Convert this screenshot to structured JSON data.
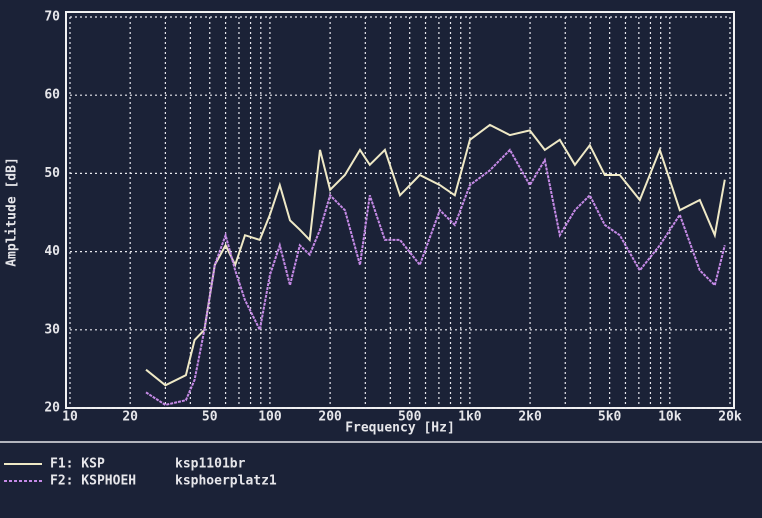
{
  "chart_data": {
    "type": "line",
    "xlabel": "Frequency [Hz]",
    "ylabel": "Amplitude [dB]",
    "log_x": true,
    "grid": true,
    "legend": "bottom-left",
    "x": [
      24,
      30,
      38,
      42,
      47,
      53,
      60,
      67,
      75,
      89,
      100,
      112,
      126,
      141,
      158,
      178,
      200,
      237,
      282,
      316,
      376,
      447,
      562,
      708,
      841,
      1000,
      1259,
      1585,
      1995,
      2371,
      2818,
      3350,
      3981,
      4732,
      5623,
      7079,
      8913,
      11220,
      14125,
      16788,
      18836
    ],
    "series": [
      {
        "name": "F1: KSP",
        "file": "ksp1101br",
        "color": "#efe9c6",
        "values": [
          24.9,
          22.9,
          24.2,
          28.7,
          30,
          38.3,
          40.8,
          38.3,
          42.1,
          41.5,
          44.7,
          48.5,
          44,
          42.8,
          41.5,
          53,
          47.9,
          49.8,
          53,
          51.1,
          53,
          47.2,
          49.8,
          48.5,
          47.2,
          54.3,
          56.2,
          54.9,
          55.5,
          53,
          54.3,
          51.1,
          53.6,
          49.8,
          49.8,
          46.6,
          53,
          45.3,
          46.6,
          42.1,
          49.2
        ]
      },
      {
        "name": "F2: KSPHOEH",
        "file": "ksphoerplatz1",
        "color": "#c58ae6",
        "values": [
          22,
          20.4,
          21,
          23.6,
          30,
          38.3,
          42.1,
          37.6,
          33.8,
          30,
          37,
          40.8,
          35.7,
          40.8,
          39.6,
          42.8,
          47.2,
          45.3,
          38.3,
          47.2,
          41.5,
          41.5,
          38.3,
          45.3,
          43.4,
          48.5,
          50.4,
          53,
          48.5,
          51.7,
          42.1,
          45.3,
          47.2,
          43.4,
          42.1,
          37.6,
          40.8,
          44.7,
          37.6,
          35.7,
          40.8
        ]
      }
    ],
    "xlim": [
      10,
      20000
    ],
    "xticks": [
      10,
      20,
      50,
      100,
      200,
      500,
      {
        "value": 1000,
        "label": "1k0"
      },
      {
        "value": 2000,
        "label": "2k0"
      },
      {
        "value": 5000,
        "label": "5k0"
      },
      {
        "value": 10000,
        "label": "10k"
      },
      {
        "value": 20000,
        "label": "20k"
      }
    ],
    "ylim": [
      20,
      70
    ],
    "yticks": [
      20,
      30,
      40,
      50,
      60,
      70
    ]
  }
}
